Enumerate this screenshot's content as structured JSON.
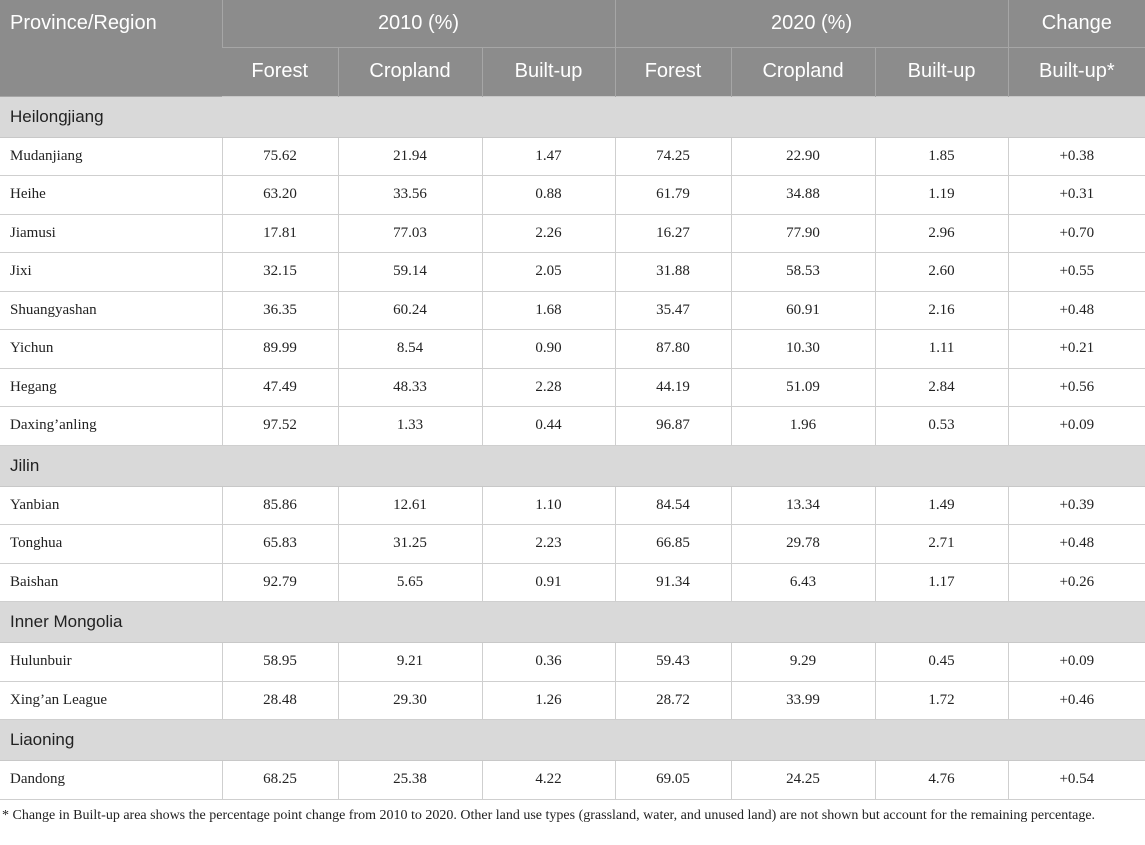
{
  "header": {
    "region_label": "Province/Region",
    "group_2010": "2010 (%)",
    "group_2020": "2020 (%)",
    "group_change": "Change",
    "sub_forest": "Forest",
    "sub_cropland": "Cropland",
    "sub_builtup": "Built-up",
    "sub_change_builtup": "Built-up*"
  },
  "groups": [
    {
      "name": "Heilongjiang",
      "rows": [
        {
          "region": "Mudanjiang",
          "f2010": "75.62",
          "c2010": "21.94",
          "b2010": "1.47",
          "f2020": "74.25",
          "c2020": "22.90",
          "b2020": "1.85",
          "change": "+0.38"
        },
        {
          "region": "Heihe",
          "f2010": "63.20",
          "c2010": "33.56",
          "b2010": "0.88",
          "f2020": "61.79",
          "c2020": "34.88",
          "b2020": "1.19",
          "change": "+0.31"
        },
        {
          "region": "Jiamusi",
          "f2010": "17.81",
          "c2010": "77.03",
          "b2010": "2.26",
          "f2020": "16.27",
          "c2020": "77.90",
          "b2020": "2.96",
          "change": "+0.70"
        },
        {
          "region": "Jixi",
          "f2010": "32.15",
          "c2010": "59.14",
          "b2010": "2.05",
          "f2020": "31.88",
          "c2020": "58.53",
          "b2020": "2.60",
          "change": "+0.55"
        },
        {
          "region": "Shuangyashan",
          "f2010": "36.35",
          "c2010": "60.24",
          "b2010": "1.68",
          "f2020": "35.47",
          "c2020": "60.91",
          "b2020": "2.16",
          "change": "+0.48"
        },
        {
          "region": "Yichun",
          "f2010": "89.99",
          "c2010": "8.54",
          "b2010": "0.90",
          "f2020": "87.80",
          "c2020": "10.30",
          "b2020": "1.11",
          "change": "+0.21"
        },
        {
          "region": "Hegang",
          "f2010": "47.49",
          "c2010": "48.33",
          "b2010": "2.28",
          "f2020": "44.19",
          "c2020": "51.09",
          "b2020": "2.84",
          "change": "+0.56"
        },
        {
          "region": "Daxing’anling",
          "f2010": "97.52",
          "c2010": "1.33",
          "b2010": "0.44",
          "f2020": "96.87",
          "c2020": "1.96",
          "b2020": "0.53",
          "change": "+0.09"
        }
      ]
    },
    {
      "name": "Jilin",
      "rows": [
        {
          "region": "Yanbian",
          "f2010": "85.86",
          "c2010": "12.61",
          "b2010": "1.10",
          "f2020": "84.54",
          "c2020": "13.34",
          "b2020": "1.49",
          "change": "+0.39"
        },
        {
          "region": "Tonghua",
          "f2010": "65.83",
          "c2010": "31.25",
          "b2010": "2.23",
          "f2020": "66.85",
          "c2020": "29.78",
          "b2020": "2.71",
          "change": "+0.48"
        },
        {
          "region": "Baishan",
          "f2010": "92.79",
          "c2010": "5.65",
          "b2010": "0.91",
          "f2020": "91.34",
          "c2020": "6.43",
          "b2020": "1.17",
          "change": "+0.26"
        }
      ]
    },
    {
      "name": "Inner Mongolia",
      "rows": [
        {
          "region": "Hulunbuir",
          "f2010": "58.95",
          "c2010": "9.21",
          "b2010": "0.36",
          "f2020": "59.43",
          "c2020": "9.29",
          "b2020": "0.45",
          "change": "+0.09"
        },
        {
          "region": "Xing’an League",
          "f2010": "28.48",
          "c2010": "29.30",
          "b2010": "1.26",
          "f2020": "28.72",
          "c2020": "33.99",
          "b2020": "1.72",
          "change": "+0.46"
        }
      ]
    },
    {
      "name": "Liaoning",
      "rows": [
        {
          "region": "Dandong",
          "f2010": "68.25",
          "c2010": "25.38",
          "b2010": "4.22",
          "f2020": "69.05",
          "c2020": "24.25",
          "b2020": "4.76",
          "change": "+0.54"
        }
      ]
    }
  ],
  "footnote": "* Change in Built-up area shows the percentage point change from 2010 to 2020. Other land use types (grassland, water, and unused land) are not shown but account for the remaining percentage."
}
